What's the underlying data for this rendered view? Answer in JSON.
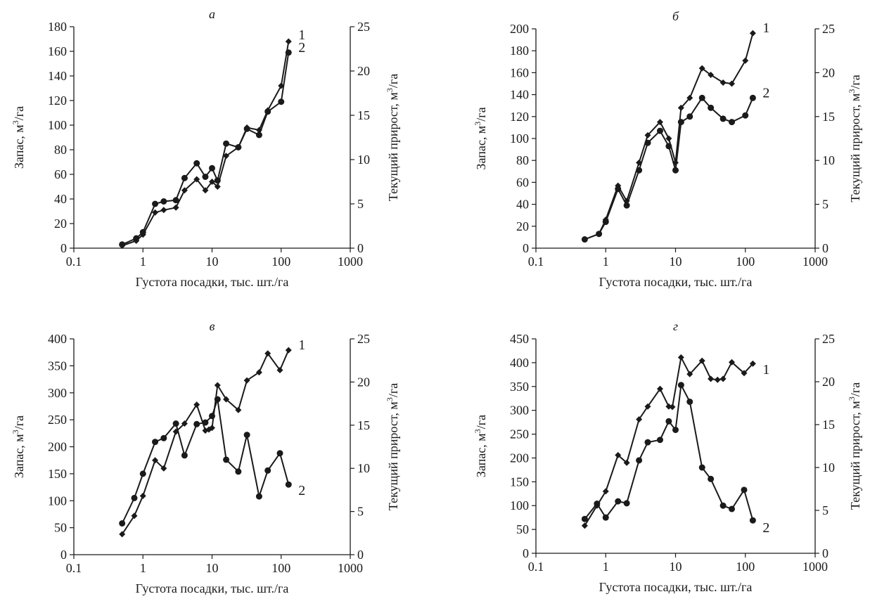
{
  "figure": {
    "colors": {
      "ink": "#1a1a1a",
      "background": "#ffffff"
    },
    "marker_1": "diamond",
    "marker_2": "circle"
  },
  "chart_data": [
    {
      "type": "line",
      "title": "а",
      "xlabel": "Густота посадки, тыс. шт./га",
      "ylabel": "Запас, м3/га",
      "y2label": "Текущий прирост, м3/га",
      "xscale": "log",
      "xlim": [
        0.1,
        1000
      ],
      "xticks": [
        "0.1",
        "1",
        "10",
        "100",
        "1000"
      ],
      "ylim": [
        0,
        180
      ],
      "yticks": [
        0,
        20,
        40,
        60,
        80,
        100,
        120,
        140,
        160,
        180
      ],
      "y2lim": [
        0,
        25
      ],
      "y2ticks": [
        0,
        5,
        10,
        15,
        20,
        25
      ],
      "grid": false,
      "series": [
        {
          "name": "1",
          "marker": "diamond",
          "x": [
            0.5,
            0.8,
            1,
            1.5,
            2,
            3,
            4,
            6,
            8,
            10,
            12,
            16,
            24,
            32,
            48,
            64,
            100,
            128
          ],
          "y": [
            2,
            6,
            11,
            29,
            31,
            33,
            47,
            56,
            47,
            54,
            50,
            75,
            82,
            98,
            96,
            112,
            132,
            168
          ]
        },
        {
          "name": "2",
          "marker": "circle",
          "x": [
            0.5,
            0.8,
            1,
            1.5,
            2,
            3,
            4,
            6,
            8,
            10,
            12,
            16,
            24,
            32,
            48,
            64,
            100,
            128
          ],
          "y": [
            3,
            8,
            13,
            36,
            38,
            39,
            57,
            69,
            58,
            65,
            55,
            85,
            82,
            97,
            92,
            111,
            119,
            159
          ]
        }
      ]
    },
    {
      "type": "line",
      "title": "б",
      "xlabel": "Густота посадки, тыс. шт./га",
      "ylabel": "Запас, м3/га",
      "y2label": "Текущий прирост, м3/га",
      "xscale": "log",
      "xlim": [
        0.1,
        1000
      ],
      "xticks": [
        "0.1",
        "1",
        "10",
        "100",
        "1000"
      ],
      "ylim": [
        0,
        200
      ],
      "yticks": [
        0,
        20,
        40,
        60,
        80,
        100,
        120,
        140,
        160,
        180,
        200
      ],
      "y2lim": [
        0,
        25
      ],
      "y2ticks": [
        0,
        5,
        10,
        15,
        20,
        25
      ],
      "grid": false,
      "series": [
        {
          "name": "1",
          "marker": "diamond",
          "x": [
            0.5,
            0.8,
            1,
            1.5,
            2,
            3,
            4,
            6,
            8,
            10,
            12,
            16,
            24,
            32,
            48,
            64,
            100,
            128
          ],
          "y": [
            8,
            13,
            26,
            57,
            43,
            78,
            103,
            115,
            100,
            78,
            128,
            137,
            164,
            158,
            151,
            150,
            171,
            196
          ]
        },
        {
          "name": "2",
          "marker": "circle",
          "x": [
            0.5,
            0.8,
            1,
            1.5,
            2,
            3,
            4,
            6,
            8,
            10,
            12,
            16,
            24,
            32,
            48,
            64,
            100,
            128
          ],
          "y": [
            8,
            13,
            24,
            54,
            39,
            71,
            96,
            107,
            93,
            71,
            115,
            120,
            137,
            128,
            118,
            115,
            121,
            137
          ]
        }
      ]
    },
    {
      "type": "line",
      "title": "в",
      "xlabel": "Густота посадки, тыс. шт./га",
      "ylabel": "Запас, м3/га",
      "y2label": "Текущий прирост, м3/га",
      "xscale": "log",
      "xlim": [
        0.1,
        1000
      ],
      "xticks": [
        "0.1",
        "1",
        "10",
        "100",
        "1000"
      ],
      "ylim": [
        0,
        400
      ],
      "yticks": [
        0,
        50,
        100,
        150,
        200,
        250,
        300,
        350,
        400
      ],
      "y2lim": [
        0,
        25
      ],
      "y2ticks": [
        0,
        5,
        10,
        15,
        20,
        25
      ],
      "grid": false,
      "series": [
        {
          "name": "1",
          "marker": "diamond",
          "x": [
            0.5,
            0.75,
            1,
            1.5,
            2,
            3,
            4,
            6,
            8,
            9,
            10,
            12,
            16,
            24,
            32,
            48,
            64,
            96,
            128
          ],
          "y": [
            38,
            72,
            109,
            175,
            160,
            228,
            243,
            278,
            230,
            232,
            235,
            314,
            288,
            268,
            323,
            338,
            373,
            342,
            379
          ]
        },
        {
          "name": "2",
          "marker": "circle",
          "x": [
            0.5,
            0.75,
            1,
            1.5,
            2,
            3,
            4,
            6,
            8,
            10,
            12,
            16,
            24,
            32,
            48,
            64,
            96,
            128
          ],
          "y": [
            58,
            105,
            150,
            209,
            216,
            243,
            184,
            242,
            245,
            257,
            288,
            176,
            154,
            222,
            108,
            156,
            188,
            130
          ]
        }
      ]
    },
    {
      "type": "line",
      "title": "г",
      "xlabel": "Густота посадки, тыс. шт./га",
      "ylabel": "Запас, м3/га",
      "y2label": "Текущий прирост, м3/га",
      "xscale": "log",
      "xlim": [
        0.1,
        1000
      ],
      "xticks": [
        "0.1",
        "1",
        "10",
        "100",
        "1000"
      ],
      "ylim": [
        0,
        450
      ],
      "yticks": [
        0,
        50,
        100,
        150,
        200,
        250,
        300,
        350,
        400,
        450
      ],
      "y2lim": [
        0,
        25
      ],
      "y2ticks": [
        0,
        5,
        10,
        15,
        20,
        25
      ],
      "grid": false,
      "series": [
        {
          "name": "1",
          "marker": "diamond",
          "x": [
            0.5,
            0.75,
            1,
            1.5,
            2,
            3,
            4,
            6,
            8,
            9,
            12,
            16,
            24,
            32,
            40,
            48,
            64,
            96,
            128
          ],
          "y": [
            58,
            100,
            130,
            206,
            190,
            281,
            308,
            345,
            308,
            307,
            411,
            376,
            404,
            366,
            364,
            366,
            401,
            378,
            398
          ]
        },
        {
          "name": "2",
          "marker": "circle",
          "x": [
            0.5,
            0.75,
            1,
            1.5,
            2,
            3,
            4,
            6,
            8,
            10,
            12,
            16,
            24,
            32,
            48,
            64,
            96,
            128
          ],
          "y": [
            72,
            104,
            75,
            109,
            105,
            195,
            233,
            238,
            277,
            259,
            353,
            318,
            180,
            156,
            100,
            93,
            133,
            69
          ]
        }
      ]
    }
  ]
}
